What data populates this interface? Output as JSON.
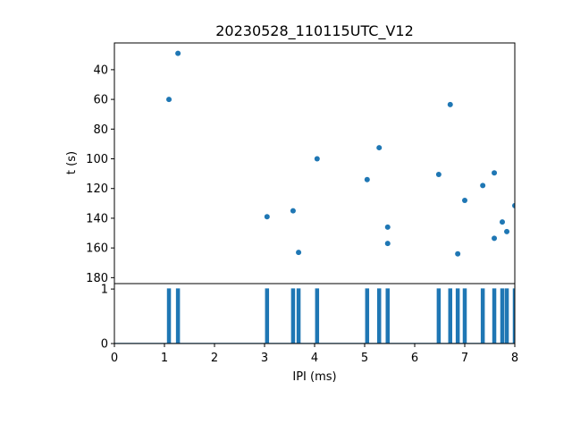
{
  "chart_data": [
    {
      "type": "scatter",
      "title": "20230528_110115UTC_V12",
      "xlabel": "",
      "ylabel": "t (s)",
      "xlim": [
        0,
        8
      ],
      "ylim": [
        184,
        22
      ],
      "y_inverted": true,
      "yticks": [
        "40",
        "60",
        "80",
        "100",
        "120",
        "140",
        "160",
        "180"
      ],
      "grid": false,
      "color": "#1f77b4",
      "x": [
        1.09,
        1.27,
        3.05,
        3.57,
        3.68,
        4.05,
        5.05,
        5.29,
        5.46,
        5.46,
        6.48,
        6.71,
        6.86,
        7.0,
        7.36,
        7.59,
        7.59,
        7.75,
        7.84,
        8.0
      ],
      "y": [
        60,
        29,
        139,
        135,
        163,
        100,
        114,
        92.5,
        146,
        157,
        110.5,
        63.5,
        164,
        128,
        118,
        109.5,
        153.5,
        142.5,
        149,
        131.5
      ]
    },
    {
      "type": "line",
      "xlabel": "IPI (ms)",
      "ylabel": "",
      "xlim": [
        0,
        8
      ],
      "ylim": [
        0,
        1.1
      ],
      "xticks": [
        "0",
        "1",
        "2",
        "3",
        "4",
        "5",
        "6",
        "7",
        "8"
      ],
      "yticks": [
        "0",
        "1"
      ],
      "grid": false,
      "color": "#1f77b4",
      "spikes_x": [
        1.09,
        1.27,
        3.05,
        3.57,
        3.68,
        4.05,
        5.05,
        5.29,
        5.46,
        6.48,
        6.71,
        6.86,
        7.0,
        7.36,
        7.59,
        7.75,
        7.84,
        8.0
      ],
      "spike_height": 1
    }
  ]
}
